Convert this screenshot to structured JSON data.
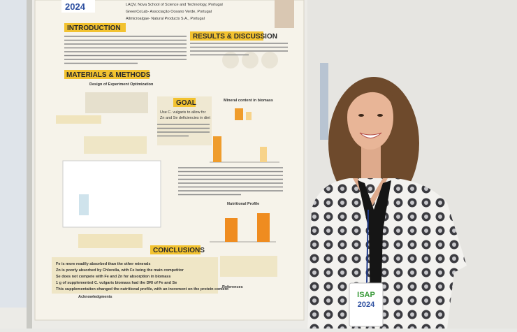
{
  "poster": {
    "logo": "2024",
    "affiliations": [
      "LAQV, Nova School of Science and Technology, Portugal",
      "GreenCoLab- Associação Oceano Verde, Portugal",
      "Allmicroalgae- Natural Products S.A., Portugal"
    ],
    "introduction": "INTRODUCTION",
    "results": "RESULTS & DISCUSSION",
    "methods": "MATERIALS & METHODS",
    "methods_subtitle": "Design of Experiment Optimization",
    "goal": "GOAL",
    "goal_text": [
      "Use C. vulgaris to allow for",
      "Zn and Se deficiencies in diet"
    ],
    "conclusions": "CONCLUSIONS",
    "conclusion_items": [
      "Fe is more readily absorbed than the other minerals",
      "Zn is poorly absorbed by Chlorella, with Fe being the main competitor",
      "Se does not compete with Fe and Zn for absorption in biomass",
      "1 g of supplemented C. vulgaris biomass had the DRI of Fe and Se",
      "This supplementation changed the nutritional profile, with an increment on the protein content"
    ],
    "acknowledgments": "Acknowledgments",
    "references": "References",
    "mineral_title": "Mineral content in biomass",
    "nutritional_title": "Nutritional Profile"
  },
  "badge": {
    "name": "ISAP",
    "year": "2024"
  }
}
